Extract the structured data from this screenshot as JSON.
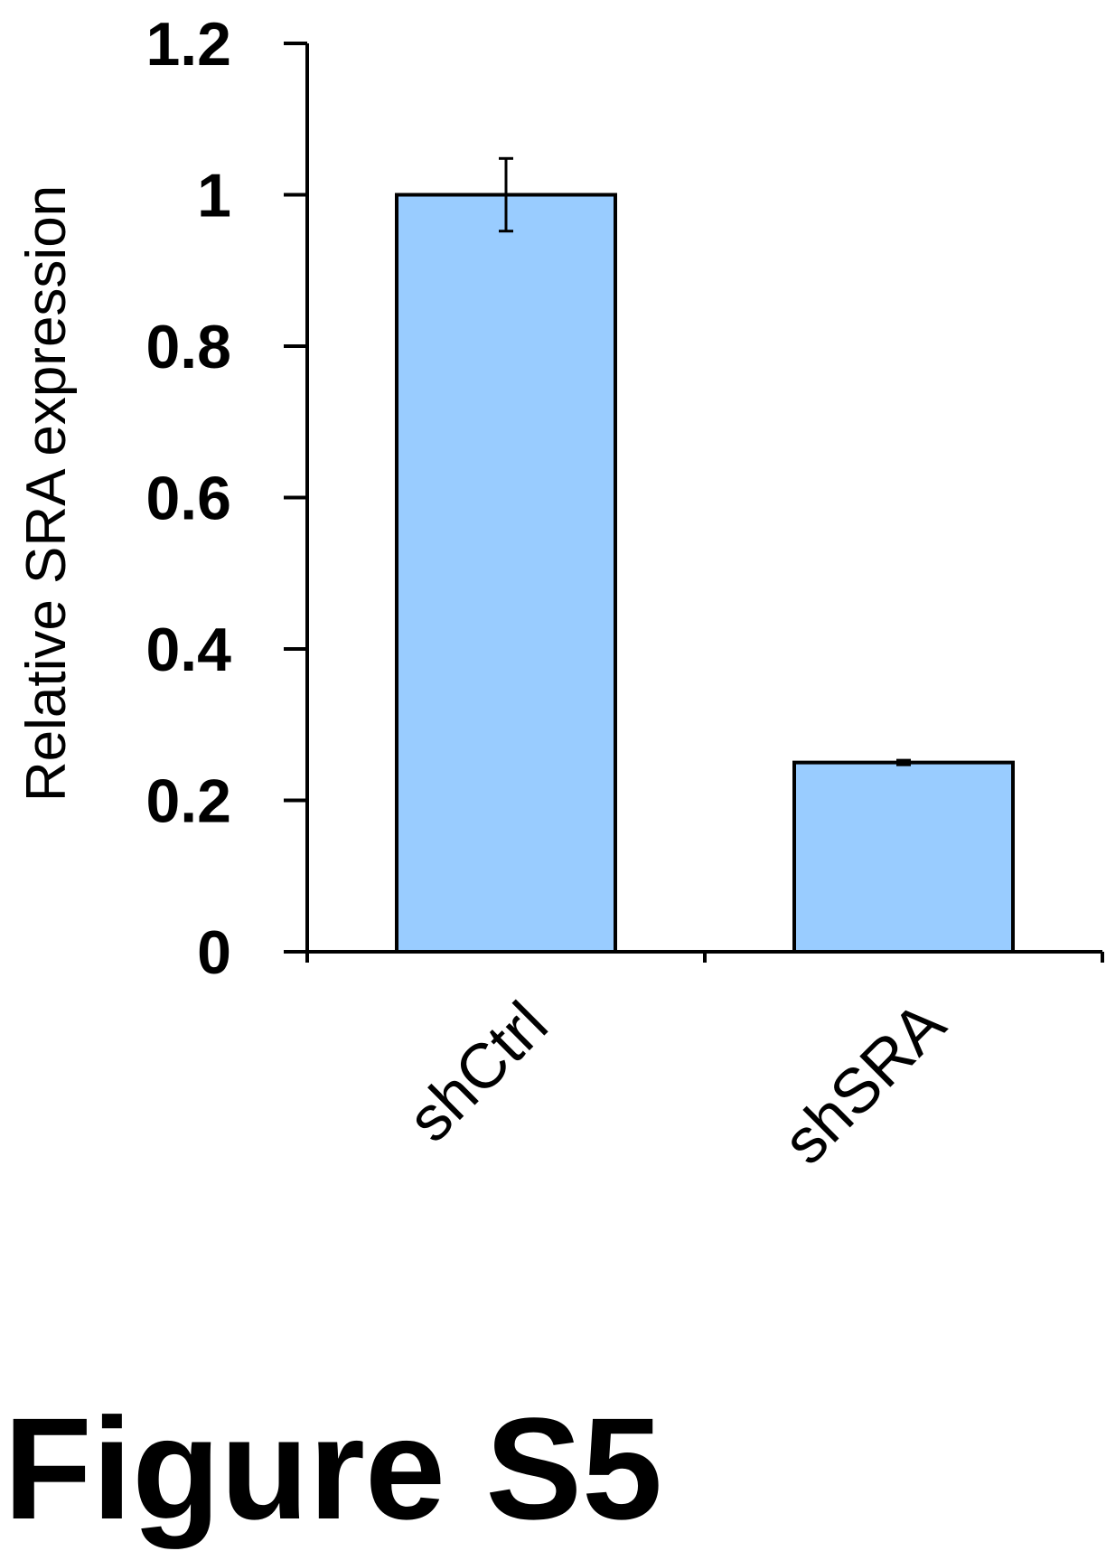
{
  "chart_data": {
    "type": "bar",
    "categories": [
      "shCtrl",
      "shSRA"
    ],
    "values": [
      1.0,
      0.25
    ],
    "error": [
      0.048,
      0.003
    ],
    "ylabel": "Relative SRA expression",
    "xlabel": "",
    "ylim": [
      0,
      1.2
    ],
    "yticks": [
      "0",
      "0.2",
      "0.4",
      "0.6",
      "0.8",
      "1",
      "1.2"
    ],
    "bar_color": "#99ccff",
    "grid": false,
    "legend": "none"
  },
  "figure_label": "Figure S5"
}
